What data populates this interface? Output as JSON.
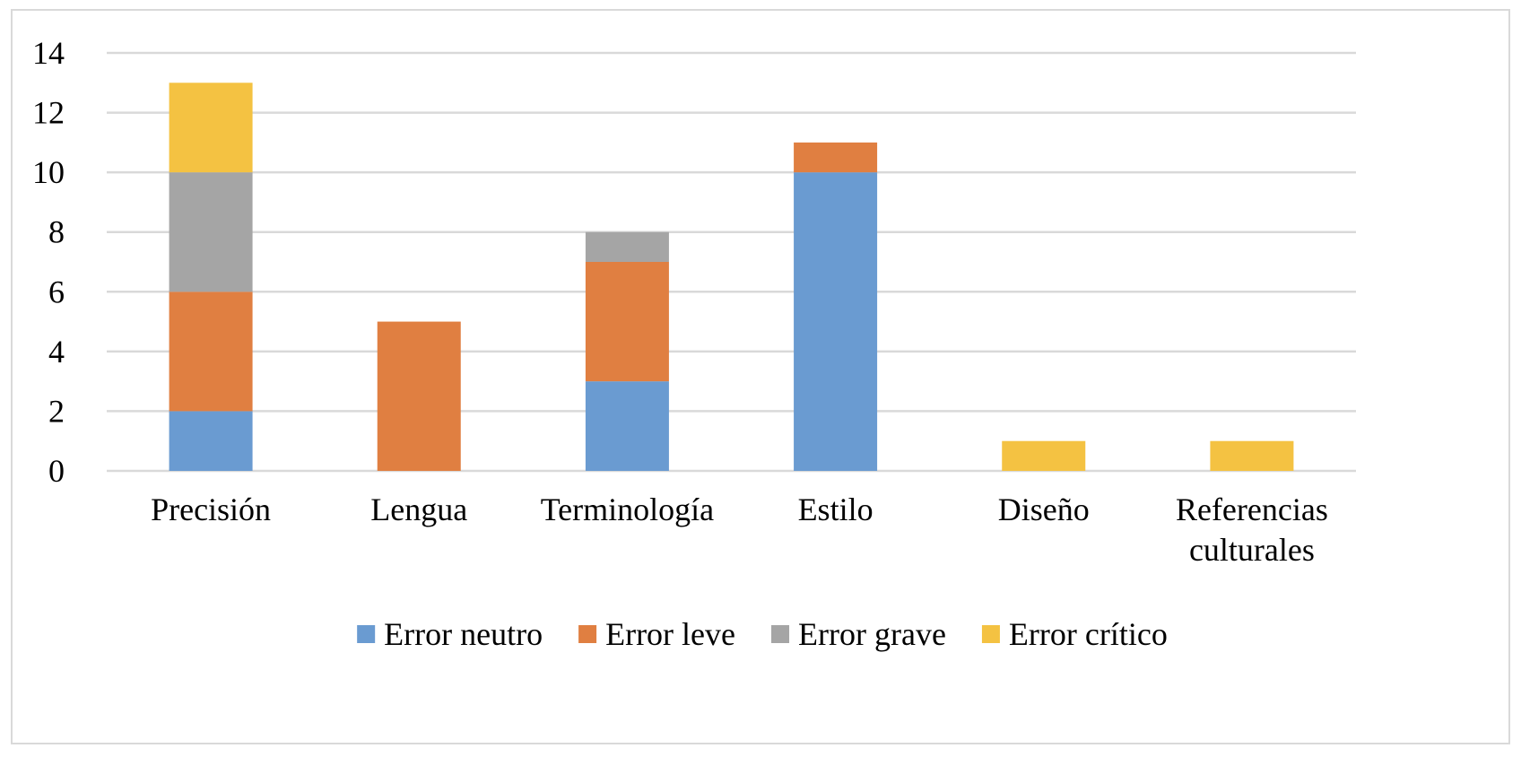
{
  "chart_data": {
    "type": "bar",
    "stacked": true,
    "categories": [
      "Precisión",
      "Lengua",
      "Terminología",
      "Estilo",
      "Diseño",
      "Referencias culturales"
    ],
    "category_lines": [
      [
        "Precisión"
      ],
      [
        "Lengua"
      ],
      [
        "Terminología"
      ],
      [
        "Estilo"
      ],
      [
        "Diseño"
      ],
      [
        "Referencias",
        "culturales"
      ]
    ],
    "series": [
      {
        "name": "Error neutro",
        "color": "#6A9BD1",
        "values": [
          2,
          0,
          3,
          10,
          0,
          0
        ]
      },
      {
        "name": "Error leve",
        "color": "#E07F41",
        "values": [
          4,
          5,
          4,
          1,
          0,
          0
        ]
      },
      {
        "name": "Error grave",
        "color": "#A5A5A5",
        "values": [
          4,
          0,
          1,
          0,
          0,
          0
        ]
      },
      {
        "name": "Error crítico",
        "color": "#F4C242",
        "values": [
          3,
          0,
          0,
          0,
          1,
          1
        ]
      }
    ],
    "y_ticks": [
      0,
      2,
      4,
      6,
      8,
      10,
      12,
      14
    ],
    "ylim": [
      0,
      14
    ],
    "grid": true,
    "legend_position": "bottom",
    "gridline_color": "#d9d9d9"
  }
}
